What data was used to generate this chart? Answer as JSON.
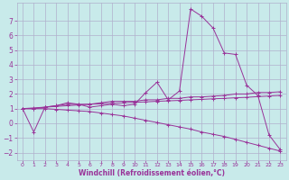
{
  "background_color": "#c8eaea",
  "grid_color": "#b0b0cc",
  "line_color": "#993399",
  "xlabel": "Windchill (Refroidissement éolien,°C)",
  "xlim": [
    -0.5,
    23.5
  ],
  "ylim": [
    -2.5,
    8.2
  ],
  "yticks": [
    -2,
    -1,
    0,
    1,
    2,
    3,
    4,
    5,
    6,
    7
  ],
  "xticks": [
    0,
    1,
    2,
    3,
    4,
    5,
    6,
    7,
    8,
    9,
    10,
    11,
    12,
    13,
    14,
    15,
    16,
    17,
    18,
    19,
    20,
    21,
    22,
    23
  ],
  "series": [
    {
      "x": [
        0,
        1,
        2,
        3,
        4,
        5,
        6,
        7,
        8,
        9,
        10,
        11,
        12,
        13,
        14,
        15,
        16,
        17,
        18,
        19,
        20,
        21,
        22,
        23
      ],
      "y": [
        1.0,
        -0.6,
        1.1,
        1.2,
        1.4,
        1.3,
        1.1,
        1.2,
        1.3,
        1.2,
        1.3,
        2.1,
        2.8,
        1.6,
        2.2,
        7.8,
        7.3,
        6.5,
        4.8,
        4.7,
        2.6,
        1.9,
        -0.8,
        -1.8
      ]
    },
    {
      "x": [
        0,
        1,
        2,
        3,
        4,
        5,
        6,
        7,
        8,
        9,
        10,
        11,
        12,
        13,
        14,
        15,
        16,
        17,
        18,
        19,
        20,
        21,
        22,
        23
      ],
      "y": [
        1.0,
        1.0,
        1.1,
        1.2,
        1.3,
        1.3,
        1.3,
        1.4,
        1.5,
        1.5,
        1.5,
        1.6,
        1.6,
        1.7,
        1.7,
        1.8,
        1.8,
        1.85,
        1.9,
        2.0,
        2.0,
        2.1,
        2.1,
        2.15
      ]
    },
    {
      "x": [
        0,
        1,
        2,
        3,
        4,
        5,
        6,
        7,
        8,
        9,
        10,
        11,
        12,
        13,
        14,
        15,
        16,
        17,
        18,
        19,
        20,
        21,
        22,
        23
      ],
      "y": [
        1.0,
        1.0,
        1.0,
        0.95,
        0.9,
        0.85,
        0.8,
        0.7,
        0.6,
        0.5,
        0.35,
        0.2,
        0.05,
        -0.1,
        -0.25,
        -0.4,
        -0.6,
        -0.75,
        -0.9,
        -1.1,
        -1.3,
        -1.5,
        -1.7,
        -1.9
      ]
    },
    {
      "x": [
        0,
        1,
        2,
        3,
        4,
        5,
        6,
        7,
        8,
        9,
        10,
        11,
        12,
        13,
        14,
        15,
        16,
        17,
        18,
        19,
        20,
        21,
        22,
        23
      ],
      "y": [
        1.0,
        1.05,
        1.1,
        1.15,
        1.2,
        1.25,
        1.3,
        1.33,
        1.36,
        1.4,
        1.43,
        1.46,
        1.5,
        1.53,
        1.56,
        1.6,
        1.63,
        1.67,
        1.7,
        1.74,
        1.77,
        1.82,
        1.86,
        1.9
      ]
    }
  ]
}
